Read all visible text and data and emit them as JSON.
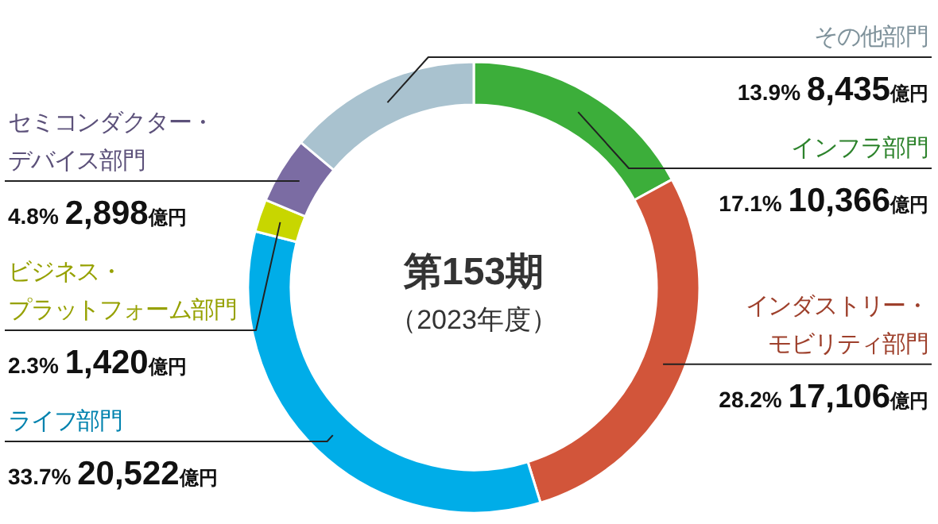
{
  "chart_data": {
    "type": "donut",
    "title": "第153期",
    "subtitle": "（2023年度）",
    "categories": [
      "インフラ部門",
      "インダストリー・モビリティ部門",
      "ライフ部門",
      "ビジネス・プラットフォーム部門",
      "セミコンダクター・デバイス部門",
      "その他部門"
    ],
    "values": [
      10366,
      17106,
      20522,
      1420,
      2898,
      8435
    ],
    "colors": [
      "#3cae3a",
      "#d2553a",
      "#00ade8",
      "#c8d600",
      "#7b6ca3",
      "#a9c2cf"
    ],
    "value_labels": [
      "17.1% 10,366億円",
      "28.2% 17,106億円",
      "33.7% 20,522億円",
      "2.3% 1,420億円",
      "4.8% 2,898億円",
      "13.9% 8,435億円"
    ]
  }
}
